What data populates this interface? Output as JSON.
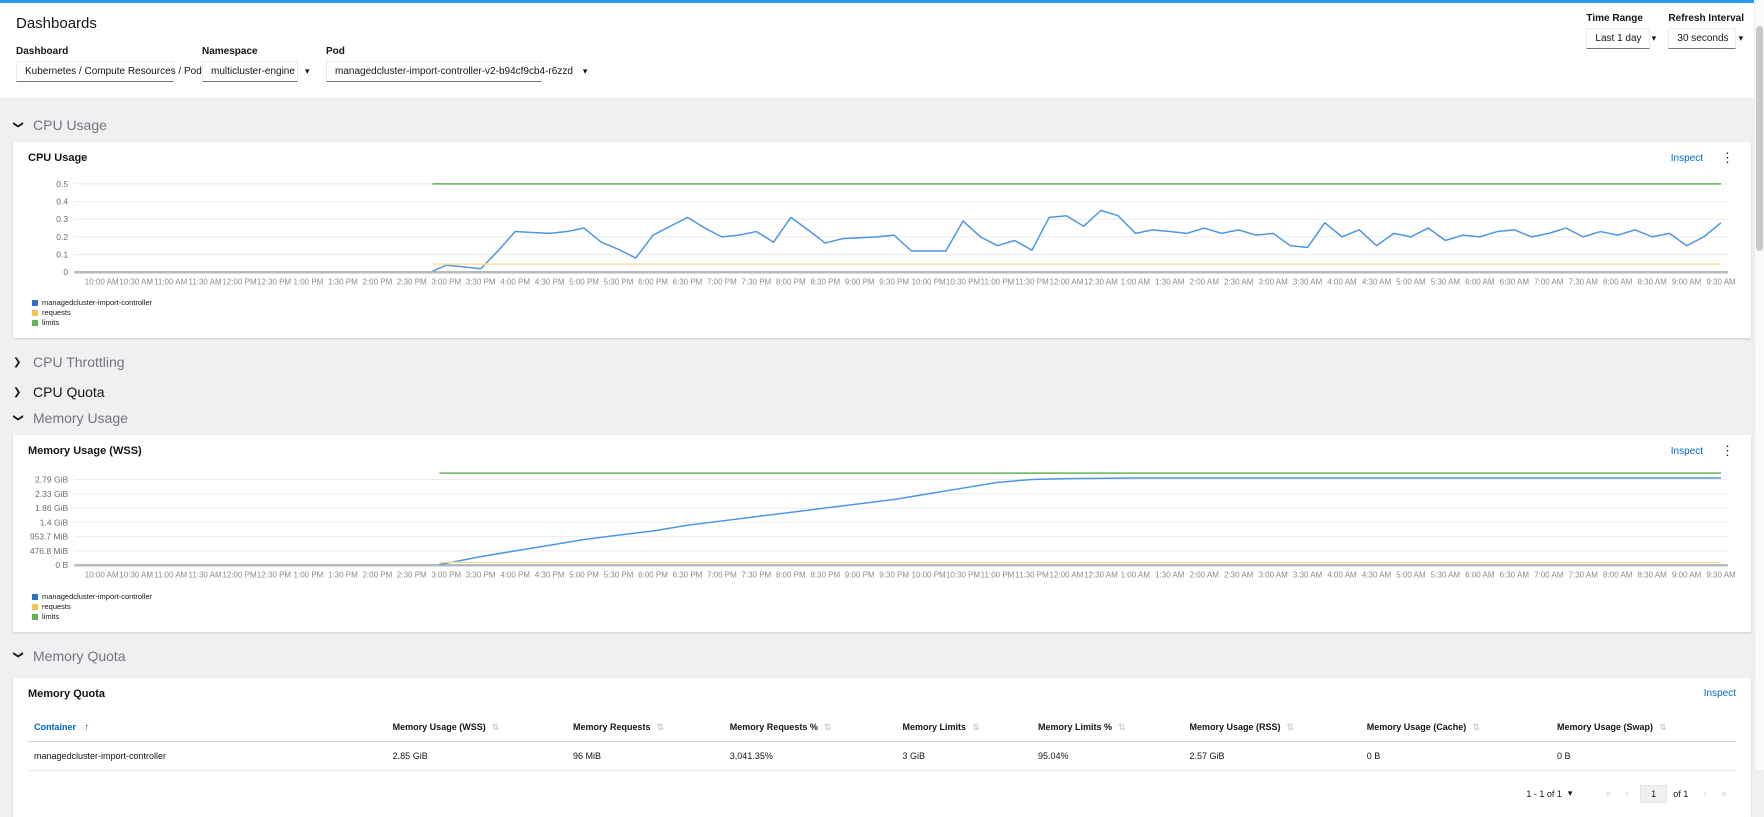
{
  "page": {
    "title": "Dashboards"
  },
  "icons": {
    "chevron": "❯",
    "caret": "▾",
    "kebab": "⋮",
    "sort_both": "⇅",
    "sort_up": "↑",
    "first_page": "«",
    "prev_page": "‹",
    "next_page": "›",
    "last_page": "»"
  },
  "toolbar": {
    "time_range": {
      "label": "Time Range",
      "value": "Last 1 day"
    },
    "refresh": {
      "label": "Refresh Interval",
      "value": "30 seconds"
    }
  },
  "filters": {
    "dashboard": {
      "label": "Dashboard",
      "value": "Kubernetes / Compute Resources / Pod"
    },
    "namespace": {
      "label": "Namespace",
      "value": "multicluster-engine"
    },
    "pod": {
      "label": "Pod",
      "value": "managedcluster-import-controller-v2-b94cf9cb4-r6zzd"
    }
  },
  "sections": {
    "cpu_usage": "CPU Usage",
    "cpu_throttling": "CPU Throttling",
    "cpu_quota": "CPU Quota",
    "memory_usage": "Memory Usage",
    "memory_quota": "Memory Quota"
  },
  "cards": {
    "cpu": {
      "title": "CPU Usage",
      "inspect": "Inspect"
    },
    "memory": {
      "title": "Memory Usage (WSS)",
      "inspect": "Inspect"
    },
    "quota": {
      "title": "Memory Quota",
      "inspect": "Inspect"
    }
  },
  "colors": {
    "accent_blue": "#2b9af3",
    "link_blue": "#0066cc",
    "series_blue": "#4f96e0",
    "series_gold": "#f0c753",
    "series_gold_line": "#f5dfa0",
    "series_green": "#61b354",
    "grid": "#ececec",
    "axis": "#b8bbbe",
    "tick_text": "#8a8d90"
  },
  "chart_data": [
    {
      "id": "cpu",
      "type": "line",
      "title": "CPU Usage",
      "y_max": 0.55,
      "y_ticks": [
        {
          "value": 0,
          "label": "0"
        },
        {
          "value": 0.1,
          "label": "0.1"
        },
        {
          "value": 0.2,
          "label": "0.2"
        },
        {
          "value": 0.3,
          "label": "0.3"
        },
        {
          "value": 0.4,
          "label": "0.4"
        },
        {
          "value": 0.5,
          "label": "0.5"
        }
      ],
      "x_tick_labels": [
        "10:00 AM",
        "10:30 AM",
        "11:00 AM",
        "11:30 AM",
        "12:00 PM",
        "12:30 PM",
        "1:00 PM",
        "1:30 PM",
        "2:00 PM",
        "2:30 PM",
        "3:00 PM",
        "3:30 PM",
        "4:00 PM",
        "4:30 PM",
        "5:00 PM",
        "5:30 PM",
        "6:00 PM",
        "6:30 PM",
        "7:00 PM",
        "7:30 PM",
        "8:00 PM",
        "8:30 PM",
        "9:00 PM",
        "9:30 PM",
        "10:00 PM",
        "10:30 PM",
        "11:00 PM",
        "11:30 PM",
        "12:00 AM",
        "12:30 AM",
        "1:00 AM",
        "1:30 AM",
        "2:00 AM",
        "2:30 AM",
        "3:00 AM",
        "3:30 AM",
        "4:00 AM",
        "4:30 AM",
        "5:00 AM",
        "5:30 AM",
        "6:00 AM",
        "6:30 AM",
        "7:00 AM",
        "7:30 AM",
        "8:00 AM",
        "8:30 AM",
        "9:00 AM",
        "9:30 AM"
      ],
      "series": [
        {
          "name": "managedcluster-import-controller",
          "color": "#4f96e0",
          "legend_color": "#2b71c7",
          "points": [
            [
              4.8,
              0.005
            ],
            [
              5.0,
              0.04
            ],
            [
              5.25,
              0.03
            ],
            [
              5.5,
              0.02
            ],
            [
              5.75,
              0.12
            ],
            [
              6.0,
              0.23
            ],
            [
              6.25,
              0.225
            ],
            [
              6.5,
              0.22
            ],
            [
              6.75,
              0.23
            ],
            [
              7.0,
              0.25
            ],
            [
              7.25,
              0.17
            ],
            [
              7.5,
              0.13
            ],
            [
              7.75,
              0.08
            ],
            [
              8.0,
              0.21
            ],
            [
              8.25,
              0.26
            ],
            [
              8.5,
              0.31
            ],
            [
              8.75,
              0.25
            ],
            [
              9.0,
              0.2
            ],
            [
              9.25,
              0.21
            ],
            [
              9.5,
              0.23
            ],
            [
              9.75,
              0.17
            ],
            [
              10.0,
              0.31
            ],
            [
              10.25,
              0.24
            ],
            [
              10.5,
              0.165
            ],
            [
              10.75,
              0.19
            ],
            [
              11.0,
              0.195
            ],
            [
              11.25,
              0.2
            ],
            [
              11.5,
              0.21
            ],
            [
              11.75,
              0.12
            ],
            [
              12.0,
              0.12
            ],
            [
              12.25,
              0.12
            ],
            [
              12.5,
              0.29
            ],
            [
              12.75,
              0.2
            ],
            [
              13.0,
              0.15
            ],
            [
              13.25,
              0.18
            ],
            [
              13.5,
              0.125
            ],
            [
              13.75,
              0.31
            ],
            [
              14.0,
              0.32
            ],
            [
              14.25,
              0.26
            ],
            [
              14.5,
              0.35
            ],
            [
              14.75,
              0.32
            ],
            [
              15.0,
              0.22
            ],
            [
              15.25,
              0.24
            ],
            [
              15.5,
              0.23
            ],
            [
              15.75,
              0.22
            ],
            [
              16.0,
              0.25
            ],
            [
              16.25,
              0.22
            ],
            [
              16.5,
              0.24
            ],
            [
              16.75,
              0.21
            ],
            [
              17.0,
              0.22
            ],
            [
              17.25,
              0.15
            ],
            [
              17.5,
              0.14
            ],
            [
              17.75,
              0.28
            ],
            [
              18.0,
              0.2
            ],
            [
              18.25,
              0.24
            ],
            [
              18.5,
              0.15
            ],
            [
              18.75,
              0.22
            ],
            [
              19.0,
              0.2
            ],
            [
              19.25,
              0.25
            ],
            [
              19.5,
              0.18
            ],
            [
              19.75,
              0.21
            ],
            [
              20.0,
              0.2
            ],
            [
              20.25,
              0.23
            ],
            [
              20.5,
              0.24
            ],
            [
              20.75,
              0.2
            ],
            [
              21.0,
              0.22
            ],
            [
              21.25,
              0.25
            ],
            [
              21.5,
              0.2
            ],
            [
              21.75,
              0.23
            ],
            [
              22.0,
              0.21
            ],
            [
              22.25,
              0.24
            ],
            [
              22.5,
              0.2
            ],
            [
              22.75,
              0.22
            ],
            [
              23.0,
              0.15
            ],
            [
              23.25,
              0.2
            ],
            [
              23.5,
              0.28
            ]
          ]
        },
        {
          "name": "requests",
          "color": "#f5dfa0",
          "legend_color": "#f0c753",
          "points": [
            [
              4.8,
              0.046
            ],
            [
              23.5,
              0.046
            ]
          ]
        },
        {
          "name": "limits",
          "color": "#61b354",
          "legend_color": "#61b354",
          "points": [
            [
              4.8,
              0.5
            ],
            [
              23.5,
              0.5
            ]
          ]
        }
      ]
    },
    {
      "id": "memory",
      "type": "line",
      "title": "Memory Usage (WSS)",
      "y_max": 3.4,
      "y_ticks": [
        {
          "value": 0,
          "label": "0 B"
        },
        {
          "value": 0.5,
          "label": "476.8 MiB"
        },
        {
          "value": 1.0,
          "label": "953.7 MiB"
        },
        {
          "value": 1.5,
          "label": "1.4 GiB"
        },
        {
          "value": 2.0,
          "label": "1.86 GiB"
        },
        {
          "value": 2.5,
          "label": "2.33 GiB"
        },
        {
          "value": 3.0,
          "label": "2.79 GiB"
        }
      ],
      "x_tick_labels": [
        "10:00 AM",
        "10:30 AM",
        "11:00 AM",
        "11:30 AM",
        "12:00 PM",
        "12:30 PM",
        "1:00 PM",
        "1:30 PM",
        "2:00 PM",
        "2:30 PM",
        "3:00 PM",
        "3:30 PM",
        "4:00 PM",
        "4:30 PM",
        "5:00 PM",
        "5:30 PM",
        "6:00 PM",
        "6:30 PM",
        "7:00 PM",
        "7:30 PM",
        "8:00 PM",
        "8:30 PM",
        "9:00 PM",
        "9:30 PM",
        "10:00 PM",
        "10:30 PM",
        "11:00 PM",
        "11:30 PM",
        "12:00 AM",
        "12:30 AM",
        "1:00 AM",
        "1:30 AM",
        "2:00 AM",
        "2:30 AM",
        "3:00 AM",
        "3:30 AM",
        "4:00 AM",
        "4:30 AM",
        "5:00 AM",
        "5:30 AM",
        "6:00 AM",
        "6:30 AM",
        "7:00 AM",
        "7:30 AM",
        "8:00 AM",
        "8:30 AM",
        "9:00 AM",
        "9:30 AM"
      ],
      "series": [
        {
          "name": "managedcluster-import-controller",
          "color": "#4f96e0",
          "legend_color": "#2b71c7",
          "points": [
            [
              4.9,
              0.02
            ],
            [
              5.5,
              0.3
            ],
            [
              6.0,
              0.5
            ],
            [
              6.5,
              0.7
            ],
            [
              7.0,
              0.9
            ],
            [
              7.5,
              1.05
            ],
            [
              8.0,
              1.2
            ],
            [
              8.5,
              1.4
            ],
            [
              9.0,
              1.55
            ],
            [
              9.5,
              1.7
            ],
            [
              10.0,
              1.85
            ],
            [
              10.5,
              2.0
            ],
            [
              11.0,
              2.15
            ],
            [
              11.5,
              2.3
            ],
            [
              12.0,
              2.5
            ],
            [
              12.5,
              2.7
            ],
            [
              13.0,
              2.9
            ],
            [
              13.5,
              3.0
            ],
            [
              14.0,
              3.03
            ],
            [
              15.0,
              3.05
            ],
            [
              17.0,
              3.05
            ],
            [
              19.0,
              3.05
            ],
            [
              21.0,
              3.05
            ],
            [
              23.5,
              3.05
            ]
          ]
        },
        {
          "name": "requests",
          "color": "#f5dfa0",
          "legend_color": "#f0c753",
          "points": [
            [
              4.9,
              0.1
            ],
            [
              23.5,
              0.1
            ]
          ]
        },
        {
          "name": "limits",
          "color": "#61b354",
          "legend_color": "#61b354",
          "points": [
            [
              4.9,
              3.22
            ],
            [
              23.5,
              3.22
            ]
          ]
        }
      ]
    }
  ],
  "memory_quota_table": {
    "headers": [
      {
        "label": "Container",
        "sorted": true
      },
      {
        "label": "Memory Usage (WSS)",
        "sorted": false
      },
      {
        "label": "Memory Requests",
        "sorted": false
      },
      {
        "label": "Memory Requests %",
        "sorted": false
      },
      {
        "label": "Memory Limits",
        "sorted": false
      },
      {
        "label": "Memory Limits %",
        "sorted": false
      },
      {
        "label": "Memory Usage (RSS)",
        "sorted": false
      },
      {
        "label": "Memory Usage (Cache)",
        "sorted": false
      },
      {
        "label": "Memory Usage (Swap)",
        "sorted": false
      }
    ],
    "rows": [
      [
        "managedcluster-import-controller",
        "2.85 GiB",
        "96 MiB",
        "3,041.35%",
        "3 GiB",
        "95.04%",
        "2.57 GiB",
        "0 B",
        "0 B"
      ]
    ]
  },
  "pagination": {
    "summary": "1 - 1 of 1",
    "page": "1",
    "of_label": "of 1"
  }
}
